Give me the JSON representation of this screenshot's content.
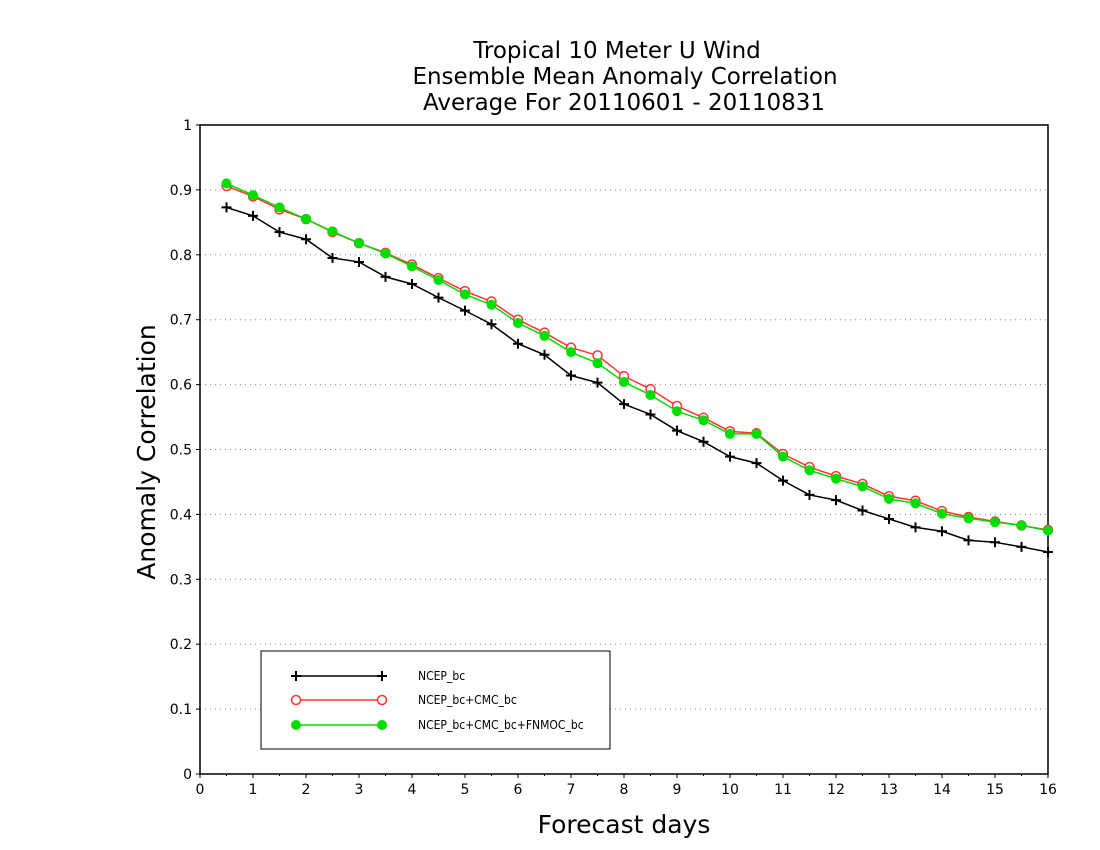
{
  "chart_data": {
    "type": "line",
    "title": [
      "Tropical 10 Meter U Wind",
      "Ensemble Mean Anomaly Correlation",
      "Average For 20110601 - 20110831"
    ],
    "xlabel": "Forecast days",
    "ylabel": "Anomaly Correlation",
    "xlim": [
      0,
      16
    ],
    "ylim": [
      0,
      1
    ],
    "xticks": [
      "0",
      "1",
      "2",
      "3",
      "4",
      "5",
      "6",
      "7",
      "8",
      "9",
      "10",
      "11",
      "12",
      "13",
      "14",
      "15",
      "16"
    ],
    "yticks": [
      "0",
      "0.1",
      "0.2",
      "0.3",
      "0.4",
      "0.5",
      "0.6",
      "0.7",
      "0.8",
      "0.9",
      "1"
    ],
    "grid": "horizontal dotted",
    "legend_placement": "bottom-left",
    "x": [
      0.5,
      1.0,
      1.5,
      2.0,
      2.5,
      3.0,
      3.5,
      4.0,
      4.5,
      5.0,
      5.5,
      6.0,
      6.5,
      7.0,
      7.5,
      8.0,
      8.5,
      9.0,
      9.5,
      10.0,
      10.5,
      11.0,
      11.5,
      12.0,
      12.5,
      13.0,
      13.5,
      14.0,
      14.5,
      15.0,
      15.5,
      16.0
    ],
    "series": [
      {
        "name": "NCEP_bc",
        "color": "#000000",
        "marker": "plus",
        "values": [
          0.873,
          0.86,
          0.835,
          0.824,
          0.795,
          0.789,
          0.766,
          0.755,
          0.734,
          0.714,
          0.693,
          0.663,
          0.646,
          0.614,
          0.603,
          0.57,
          0.554,
          0.529,
          0.512,
          0.489,
          0.479,
          0.452,
          0.43,
          0.422,
          0.406,
          0.393,
          0.38,
          0.374,
          0.36,
          0.357,
          0.35,
          0.342
        ]
      },
      {
        "name": "NCEP_bc+CMC_bc",
        "color": "#ff3333",
        "marker": "open-circle",
        "values": [
          0.906,
          0.89,
          0.87,
          0.855,
          0.835,
          0.818,
          0.803,
          0.785,
          0.764,
          0.744,
          0.728,
          0.7,
          0.68,
          0.657,
          0.645,
          0.613,
          0.593,
          0.567,
          0.549,
          0.528,
          0.525,
          0.493,
          0.473,
          0.459,
          0.447,
          0.428,
          0.421,
          0.405,
          0.396,
          0.389,
          0.383,
          0.376
        ]
      },
      {
        "name": "NCEP_bc+CMC_bc+FNMOC_bc",
        "color": "#00dd00",
        "marker": "filled-circle",
        "values": [
          0.91,
          0.892,
          0.873,
          0.855,
          0.836,
          0.818,
          0.802,
          0.782,
          0.761,
          0.739,
          0.723,
          0.695,
          0.675,
          0.65,
          0.633,
          0.604,
          0.584,
          0.559,
          0.545,
          0.524,
          0.524,
          0.489,
          0.468,
          0.455,
          0.443,
          0.424,
          0.417,
          0.401,
          0.394,
          0.388,
          0.383,
          0.375
        ]
      }
    ]
  }
}
